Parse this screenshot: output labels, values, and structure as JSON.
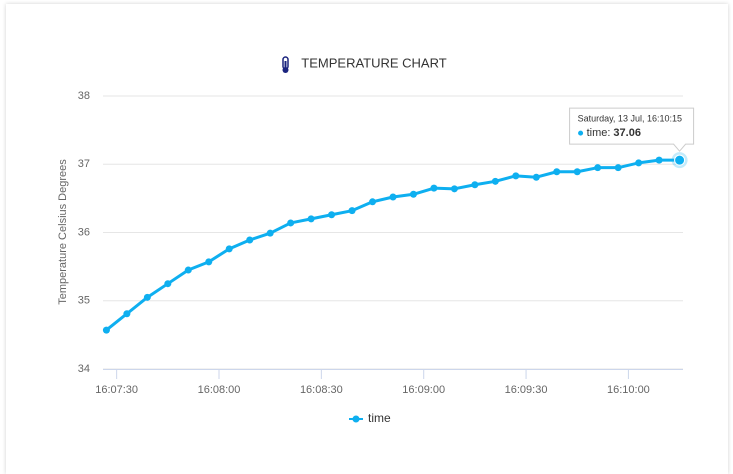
{
  "chart_data": {
    "type": "line",
    "title": "TEMPERATURE CHART",
    "y_label": "Temperature Celsius Degrees",
    "x": [
      "16:07:27",
      "16:07:33",
      "16:07:39",
      "16:07:45",
      "16:07:51",
      "16:07:57",
      "16:08:03",
      "16:08:09",
      "16:08:15",
      "16:08:21",
      "16:08:27",
      "16:08:33",
      "16:08:39",
      "16:08:45",
      "16:08:51",
      "16:08:57",
      "16:09:03",
      "16:09:09",
      "16:09:15",
      "16:09:21",
      "16:09:27",
      "16:09:33",
      "16:09:39",
      "16:09:45",
      "16:09:51",
      "16:09:57",
      "16:10:03",
      "16:10:09",
      "16:10:15"
    ],
    "series": [
      {
        "name": "time",
        "color": "#0eaff0",
        "values": [
          34.57,
          34.81,
          35.05,
          35.25,
          35.45,
          35.57,
          35.76,
          35.89,
          35.99,
          36.14,
          36.2,
          36.26,
          36.32,
          36.45,
          36.52,
          36.56,
          36.65,
          36.64,
          36.7,
          36.75,
          36.83,
          36.81,
          36.89,
          36.89,
          36.95,
          36.95,
          37.02,
          37.06,
          37.06
        ]
      }
    ],
    "xlim": [
      "16:07:26",
      "16:10:16"
    ],
    "xticks": [
      "16:07:30",
      "16:08:00",
      "16:08:30",
      "16:09:00",
      "16:09:30",
      "16:10:00"
    ],
    "ylim": [
      34,
      38
    ],
    "yticks": [
      34,
      35,
      36,
      37,
      38
    ],
    "grid": true,
    "legend": "bottom",
    "tooltip": {
      "header": "Saturday, 13 Jul, 16:10:15",
      "series_label": "time:"
    }
  }
}
